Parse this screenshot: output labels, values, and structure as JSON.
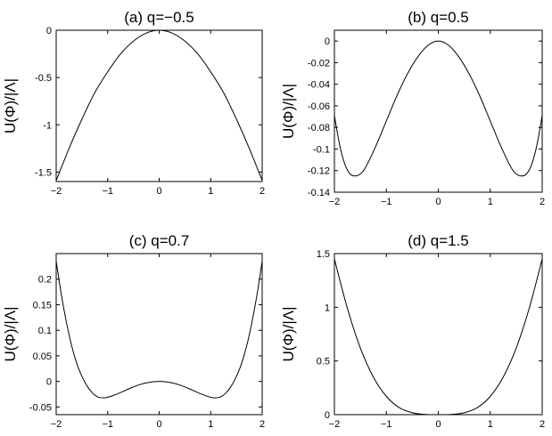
{
  "figure": {
    "y_axis_label": "U(Φ)/|Λ|"
  },
  "chart_data": [
    {
      "type": "line",
      "title": "(a) q=−0.5",
      "ylabel": "U(Φ)/|Λ|",
      "xlim": [
        -2,
        2
      ],
      "ylim": [
        -1.6,
        0
      ],
      "x_ticks": [
        "−2",
        "−1",
        "0",
        "1",
        "2"
      ],
      "y_ticks": [
        {
          "value": 0,
          "label": "0"
        },
        {
          "value": -0.5,
          "label": "-0.5"
        },
        {
          "value": -1,
          "label": "-1"
        },
        {
          "value": -1.5,
          "label": "-1.5"
        }
      ],
      "series": [
        {
          "x": [
            -2,
            -1.75,
            -1.5,
            -1.25,
            -1,
            -0.75,
            -0.5,
            -0.25,
            0,
            0.25,
            0.5,
            0.75,
            1,
            1.25,
            1.5,
            1.75,
            2
          ],
          "y": [
            -1.59,
            -1.25,
            -0.94,
            -0.66,
            -0.44,
            -0.25,
            -0.115,
            -0.03,
            0,
            -0.03,
            -0.115,
            -0.25,
            -0.44,
            -0.66,
            -0.94,
            -1.25,
            -1.59
          ]
        }
      ]
    },
    {
      "type": "line",
      "title": "(b) q=0.5",
      "ylabel": "U(Φ)/|Λ|",
      "xlim": [
        -2,
        2
      ],
      "ylim": [
        -0.14,
        0.01
      ],
      "x_ticks": [
        "−2",
        "−1",
        "0",
        "1",
        "2"
      ],
      "y_ticks": [
        {
          "value": 0,
          "label": "0"
        },
        {
          "value": -0.02,
          "label": "-0.02"
        },
        {
          "value": -0.04,
          "label": "-0.04"
        },
        {
          "value": -0.06,
          "label": "-0.06"
        },
        {
          "value": -0.08,
          "label": "-0.08"
        },
        {
          "value": -0.1,
          "label": "-0.1"
        },
        {
          "value": -0.12,
          "label": "-0.12"
        },
        {
          "value": -0.14,
          "label": "-0.14"
        }
      ],
      "series": [
        {
          "x": [
            -2,
            -1.9,
            -1.8,
            -1.7,
            -1.6,
            -1.5,
            -1.4,
            -1.2,
            -1,
            -0.8,
            -0.6,
            -0.4,
            -0.2,
            0,
            0.2,
            0.4,
            0.6,
            0.8,
            1,
            1.2,
            1.4,
            1.5,
            1.6,
            1.7,
            1.8,
            1.9,
            2
          ],
          "y": [
            -0.069,
            -0.096,
            -0.114,
            -0.123,
            -0.125,
            -0.123,
            -0.117,
            -0.097,
            -0.074,
            -0.051,
            -0.031,
            -0.015,
            -0.004,
            0,
            -0.004,
            -0.015,
            -0.031,
            -0.051,
            -0.074,
            -0.097,
            -0.117,
            -0.123,
            -0.125,
            -0.123,
            -0.114,
            -0.096,
            -0.069
          ]
        }
      ]
    },
    {
      "type": "line",
      "title": "(c) q=0.7",
      "ylabel": "U(Φ)/|Λ|",
      "xlim": [
        -2,
        2
      ],
      "ylim": [
        -0.065,
        0.25
      ],
      "x_ticks": [
        "−2",
        "−1",
        "0",
        "1",
        "2"
      ],
      "y_ticks": [
        {
          "value": 0.2,
          "label": "0.2"
        },
        {
          "value": 0.15,
          "label": "0.15"
        },
        {
          "value": 0.1,
          "label": "0.1"
        },
        {
          "value": 0.05,
          "label": "0.05"
        },
        {
          "value": 0,
          "label": "0"
        },
        {
          "value": -0.05,
          "label": "-0.05"
        }
      ],
      "series": [
        {
          "x": [
            -2,
            -1.9,
            -1.8,
            -1.7,
            -1.6,
            -1.5,
            -1.4,
            -1.3,
            -1.2,
            -1.1,
            -1,
            -0.8,
            -0.6,
            -0.4,
            -0.2,
            0,
            0.2,
            0.4,
            0.6,
            0.8,
            1,
            1.1,
            1.2,
            1.3,
            1.4,
            1.5,
            1.6,
            1.7,
            1.8,
            1.9,
            2
          ],
          "y": [
            0.235,
            0.17,
            0.115,
            0.07,
            0.035,
            0.01,
            -0.009,
            -0.022,
            -0.03,
            -0.032,
            -0.031,
            -0.024,
            -0.015,
            -0.007,
            -0.002,
            0,
            -0.002,
            -0.007,
            -0.015,
            -0.024,
            -0.031,
            -0.032,
            -0.03,
            -0.022,
            -0.009,
            0.01,
            0.035,
            0.07,
            0.115,
            0.17,
            0.235
          ]
        }
      ]
    },
    {
      "type": "line",
      "title": "(d) q=1.5",
      "ylabel": "U(Φ)/|Λ|",
      "xlim": [
        -2,
        2
      ],
      "ylim": [
        0,
        1.5
      ],
      "x_ticks": [
        "−2",
        "−1",
        "0",
        "1",
        "2"
      ],
      "y_ticks": [
        {
          "value": 1.5,
          "label": "1.5"
        },
        {
          "value": 1,
          "label": "1"
        },
        {
          "value": 0.5,
          "label": "0.5"
        },
        {
          "value": 0,
          "label": "0"
        }
      ],
      "series": [
        {
          "x": [
            -2,
            -1.75,
            -1.5,
            -1.25,
            -1,
            -0.75,
            -0.5,
            -0.25,
            0,
            0.25,
            0.5,
            0.75,
            1,
            1.25,
            1.5,
            1.75,
            2
          ],
          "y": [
            1.45,
            0.99,
            0.62,
            0.35,
            0.17,
            0.065,
            0.018,
            0.002,
            0,
            0.002,
            0.018,
            0.065,
            0.17,
            0.35,
            0.62,
            0.99,
            1.45
          ]
        }
      ]
    }
  ]
}
